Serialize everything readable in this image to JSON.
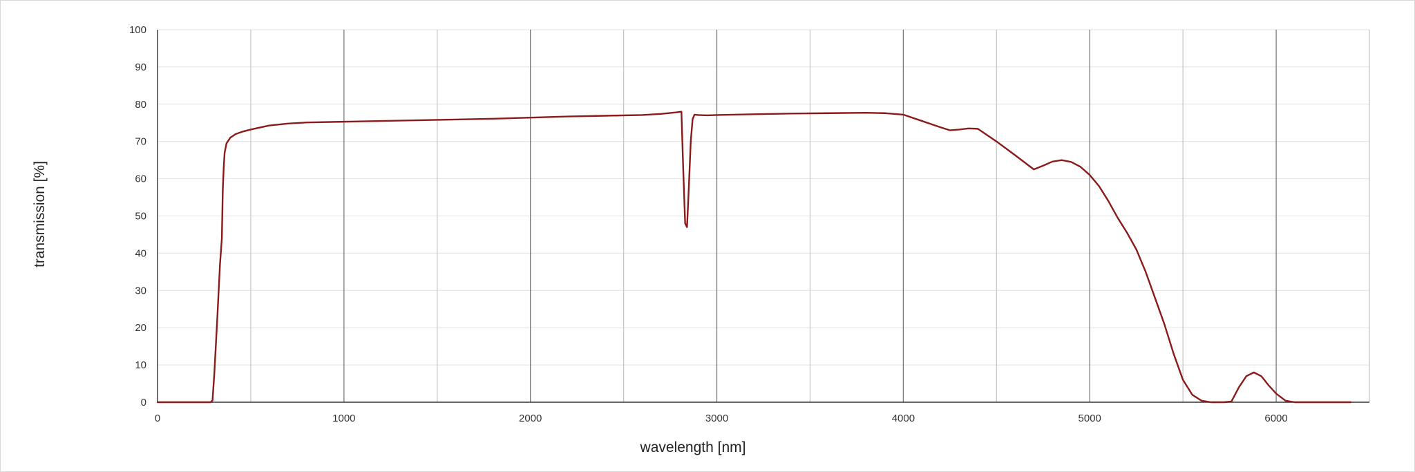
{
  "chart_data": {
    "type": "line",
    "title": "",
    "xlabel": "wavelength [nm]",
    "ylabel": "transmission [%]",
    "xlim": [
      0,
      6500
    ],
    "ylim": [
      0,
      100
    ],
    "x_ticks": [
      {
        "value": 0,
        "label": "0"
      },
      {
        "value": 1000,
        "label": "1000"
      },
      {
        "value": 2000,
        "label": "2000"
      },
      {
        "value": 3000,
        "label": "3000"
      },
      {
        "value": 4000,
        "label": "4000"
      },
      {
        "value": 5000,
        "label": "5000"
      },
      {
        "value": 6000,
        "label": "6000"
      }
    ],
    "x_minor_gridlines": [
      500,
      1500,
      2500,
      3500,
      4500,
      5500,
      6500
    ],
    "y_ticks": [
      {
        "value": 0,
        "label": "0"
      },
      {
        "value": 10,
        "label": "10"
      },
      {
        "value": 20,
        "label": "20"
      },
      {
        "value": 30,
        "label": "30"
      },
      {
        "value": 40,
        "label": "40"
      },
      {
        "value": 50,
        "label": "50"
      },
      {
        "value": 60,
        "label": "60"
      },
      {
        "value": 70,
        "label": "70"
      },
      {
        "value": 80,
        "label": "80"
      },
      {
        "value": 90,
        "label": "90"
      },
      {
        "value": 100,
        "label": "100"
      }
    ],
    "grid": true,
    "legend": "none",
    "colors": {
      "series": "#8b1a1a",
      "major_grid": "#6f6f6f",
      "minor_grid": "#c4c4c4",
      "horizontal_grid": "#e2e2e2",
      "axis": "#333333"
    },
    "series": [
      {
        "x": [
          0,
          250,
          285,
          295,
          305,
          320,
          335,
          345,
          350,
          355,
          360,
          370,
          390,
          420,
          460,
          500,
          600,
          700,
          800,
          1000,
          1200,
          1500,
          1800,
          2000,
          2200,
          2400,
          2600,
          2700,
          2780,
          2810,
          2820,
          2830,
          2840,
          2850,
          2860,
          2870,
          2880,
          2900,
          2950,
          3000,
          3200,
          3400,
          3600,
          3800,
          3900,
          4000,
          4100,
          4200,
          4250,
          4300,
          4350,
          4400,
          4500,
          4600,
          4700,
          4750,
          4800,
          4850,
          4900,
          4950,
          5000,
          5050,
          5100,
          5150,
          5200,
          5250,
          5300,
          5350,
          5400,
          5450,
          5500,
          5550,
          5600,
          5650,
          5700,
          5720,
          5760,
          5800,
          5840,
          5880,
          5920,
          5960,
          6000,
          6050,
          6100,
          6150,
          6200,
          6250,
          6300,
          6350,
          6400
        ],
        "y": [
          0,
          0,
          0,
          0.5,
          8,
          22,
          37,
          44,
          57,
          63,
          67,
          69.5,
          71,
          72,
          72.7,
          73.2,
          74.3,
          74.8,
          75.1,
          75.3,
          75.5,
          75.8,
          76.1,
          76.4,
          76.7,
          76.9,
          77.1,
          77.4,
          77.8,
          78,
          62,
          48,
          47,
          58,
          70,
          76,
          77.2,
          77.1,
          77,
          77.1,
          77.3,
          77.5,
          77.6,
          77.7,
          77.6,
          77.2,
          75.5,
          73.8,
          73,
          73.2,
          73.5,
          73.4,
          70,
          66.3,
          62.5,
          63.5,
          64.6,
          65,
          64.5,
          63.2,
          61,
          58,
          54,
          49.5,
          45.5,
          41,
          35,
          28,
          21,
          13,
          6,
          2,
          0.4,
          0,
          0,
          0,
          0.2,
          4,
          7,
          8,
          7,
          4.5,
          2.3,
          0.4,
          0,
          0,
          0,
          0,
          0,
          0,
          0
        ]
      }
    ]
  }
}
